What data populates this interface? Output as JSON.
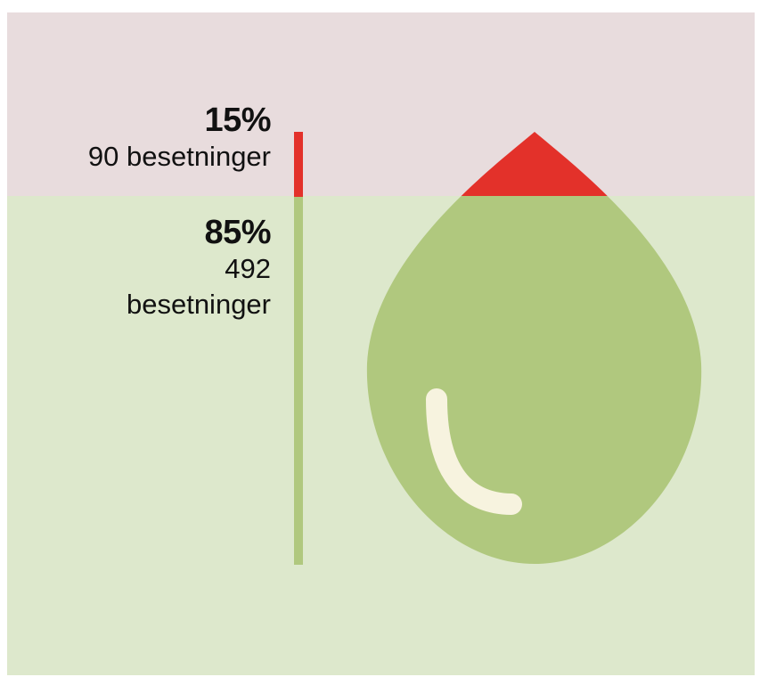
{
  "colors": {
    "minor": "#e3312a",
    "major": "#b0c87e",
    "minor_band": "#e8dcdd",
    "major_band": "#dde8cc",
    "highlight": "#f7f3df"
  },
  "chart_data": {
    "type": "bar",
    "stacked": true,
    "orientation": "vertical",
    "categories": [
      "90 besetninger",
      "492 besetninger"
    ],
    "values": [
      15,
      85
    ],
    "counts": [
      90,
      492
    ],
    "unit": "%",
    "labels": [
      {
        "percent": "15%",
        "count": "90 besetninger"
      },
      {
        "percent": "85%",
        "count": "492 besetninger"
      }
    ],
    "icon": "water-drop-icon"
  }
}
